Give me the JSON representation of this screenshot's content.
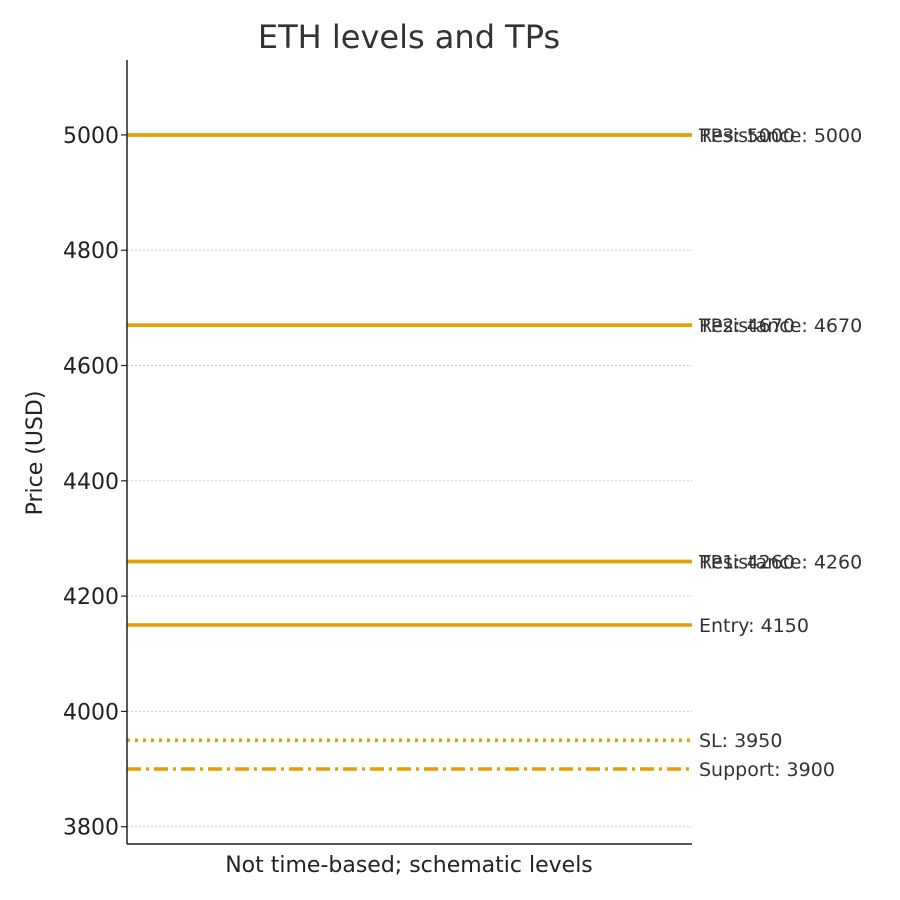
{
  "chart_data": {
    "type": "line",
    "title": "ETH levels and TPs",
    "xlabel": "Not time-based; schematic levels",
    "ylabel": "Price (USD)",
    "ylim": [
      3770,
      5130
    ],
    "yticks": [
      3800,
      4000,
      4200,
      4400,
      4600,
      4800,
      5000
    ],
    "grid": true,
    "line_color": "#E69F00",
    "levels": [
      {
        "key": "resistance-5000",
        "label": "Resistance: 5000",
        "value": 5000,
        "style": "solid"
      },
      {
        "key": "tp3",
        "label": "TP3: 5000",
        "value": 5000,
        "style": "solid"
      },
      {
        "key": "resistance-4670",
        "label": "Resistance: 4670",
        "value": 4670,
        "style": "solid"
      },
      {
        "key": "tp2",
        "label": "TP2: 4670",
        "value": 4670,
        "style": "solid"
      },
      {
        "key": "resistance-4260",
        "label": "Resistance: 4260",
        "value": 4260,
        "style": "solid"
      },
      {
        "key": "tp1",
        "label": "TP1: 4260",
        "value": 4260,
        "style": "solid"
      },
      {
        "key": "entry",
        "label": "Entry: 4150",
        "value": 4150,
        "style": "solid"
      },
      {
        "key": "sl",
        "label": "SL: 3950",
        "value": 3950,
        "style": "dotted"
      },
      {
        "key": "support",
        "label": "Support: 3900",
        "value": 3900,
        "style": "dashdot"
      }
    ]
  }
}
